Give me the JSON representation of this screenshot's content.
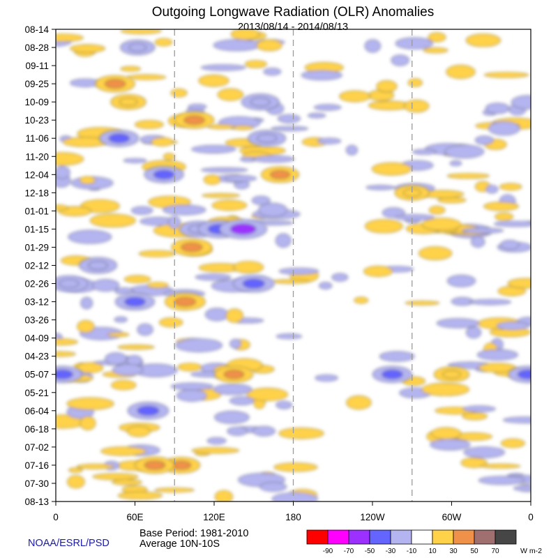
{
  "chart_data": {
    "type": "heatmap",
    "title": "Outgoing Longwave Radiation (OLR) Anomalies",
    "subtitle": "2013/08/14 - 2014/08/13",
    "x_ticks": [
      "0",
      "60E",
      "120E",
      "180",
      "120W",
      "60W",
      "0"
    ],
    "y_ticks": [
      "08-14",
      "08-28",
      "09-11",
      "09-25",
      "10-09",
      "10-23",
      "11-06",
      "11-20",
      "12-04",
      "12-18",
      "01-01",
      "01-15",
      "01-29",
      "02-12",
      "02-26",
      "03-12",
      "03-26",
      "04-09",
      "04-23",
      "05-07",
      "05-21",
      "06-04",
      "06-18",
      "07-02",
      "07-16",
      "07-30",
      "08-13"
    ],
    "xlim": [
      0,
      360
    ],
    "dashed_reference_longitudes": [
      90,
      180,
      270
    ],
    "footer": {
      "base_period": "Base Period: 1981-2010",
      "average": "Average 10N-10S",
      "credit": "NOAA/ESRL/PSD"
    },
    "colorbar": {
      "levels": [
        "-90",
        "-70",
        "-50",
        "-30",
        "-10",
        "10",
        "30",
        "50",
        "70"
      ],
      "colors": [
        "#ff0000",
        "#ff00ff",
        "#9b30ff",
        "#6464ff",
        "#b4b4f0",
        "#ffffff",
        "#ffd24a",
        "#f0914a",
        "#a07070",
        "#464646"
      ],
      "unit": "W m-2"
    },
    "anomalies": [
      {
        "lon": 45,
        "date": "09-25",
        "value": 35
      },
      {
        "lon": 55,
        "date": "10-09",
        "value": 22
      },
      {
        "lon": 62,
        "date": "08-28",
        "value": -20
      },
      {
        "lon": 95,
        "date": "07-16",
        "value": 30
      },
      {
        "lon": 75,
        "date": "07-16",
        "value": 35
      },
      {
        "lon": 48,
        "date": "11-06",
        "value": -35
      },
      {
        "lon": 82,
        "date": "12-04",
        "value": -35
      },
      {
        "lon": 108,
        "date": "01-15",
        "value": -30
      },
      {
        "lon": 124,
        "date": "01-15",
        "value": -45
      },
      {
        "lon": 142,
        "date": "01-15",
        "value": -60
      },
      {
        "lon": 103,
        "date": "01-29",
        "value": 38
      },
      {
        "lon": 98,
        "date": "03-12",
        "value": 38
      },
      {
        "lon": 150,
        "date": "02-26",
        "value": -40
      },
      {
        "lon": 155,
        "date": "10-09",
        "value": -30
      },
      {
        "lon": 170,
        "date": "12-04",
        "value": 30
      },
      {
        "lon": 160,
        "date": "11-06",
        "value": -30
      },
      {
        "lon": 105,
        "date": "10-23",
        "value": 35
      },
      {
        "lon": 135,
        "date": "05-07",
        "value": 32
      },
      {
        "lon": 70,
        "date": "06-04",
        "value": -40
      },
      {
        "lon": 255,
        "date": "05-07",
        "value": -35
      },
      {
        "lon": 358,
        "date": "05-07",
        "value": -35
      },
      {
        "lon": 5,
        "date": "05-07",
        "value": -35
      },
      {
        "lon": 10,
        "date": "02-26",
        "value": -30
      },
      {
        "lon": 32,
        "date": "02-12",
        "value": -30
      },
      {
        "lon": 60,
        "date": "03-12",
        "value": -35
      },
      {
        "lon": 270,
        "date": "12-18",
        "value": 20
      },
      {
        "lon": 300,
        "date": "05-07",
        "value": 22
      }
    ]
  }
}
